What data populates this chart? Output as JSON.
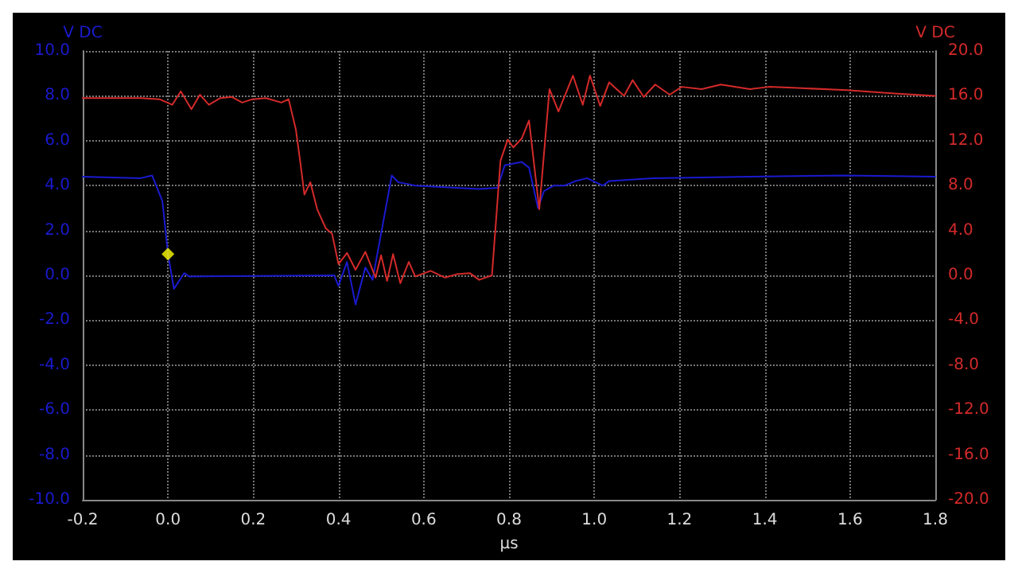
{
  "chart_data": {
    "type": "line",
    "xlabel": "μs",
    "ylabel": "V DC",
    "y2label": "V DC",
    "xlim": [
      -0.2,
      1.8
    ],
    "xticks": [
      -0.2,
      {
        "value": 0,
        "label": "0.0"
      },
      0.2,
      0.4,
      0.6,
      0.8,
      {
        "value": 1,
        "label": "1.0"
      },
      1.2,
      1.4,
      1.6,
      1.8
    ],
    "ylim": [
      -10,
      10
    ],
    "yticks": [
      {
        "value": -10,
        "label": "-10.0"
      },
      {
        "value": -8,
        "label": "-8.0"
      },
      {
        "value": -6,
        "label": "-6.0"
      },
      {
        "value": -4,
        "label": "-4.0"
      },
      {
        "value": -2,
        "label": "-2.0"
      },
      {
        "value": 0,
        "label": "0.0"
      },
      {
        "value": 2,
        "label": "2.0"
      },
      {
        "value": 4,
        "label": "4.0"
      },
      {
        "value": 6,
        "label": "6.0"
      },
      {
        "value": 8,
        "label": "8.0"
      },
      {
        "value": 10,
        "label": "10.0"
      }
    ],
    "y2lim": [
      -20,
      20
    ],
    "y2ticks": [
      {
        "value": -20,
        "label": "-20.0"
      },
      {
        "value": -16,
        "label": "-16.0"
      },
      {
        "value": -12,
        "label": "-12.0"
      },
      {
        "value": -8,
        "label": "-8.0"
      },
      {
        "value": -4,
        "label": "-4.0"
      },
      {
        "value": 0,
        "label": "0.0"
      },
      {
        "value": 4,
        "label": "4.0"
      },
      {
        "value": 8,
        "label": "8.0"
      },
      {
        "value": 12,
        "label": "12.0"
      },
      {
        "value": 16,
        "label": "16.0"
      },
      {
        "value": 20,
        "label": "20.0"
      }
    ],
    "grid": true,
    "marker": "none",
    "line_style": "solid",
    "series": [
      {
        "color": "#1a1ad0",
        "x": [
          -0.2,
          -0.064,
          -0.037,
          -0.013,
          0,
          0.014,
          0.038,
          0.05,
          0.39,
          0.4,
          0.42,
          0.44,
          0.463,
          0.48,
          0.525,
          0.54,
          0.555,
          0.58,
          0.73,
          0.773,
          0.79,
          0.83,
          0.847,
          0.868,
          0.882,
          0.905,
          0.93,
          0.956,
          0.983,
          1.02,
          1.035,
          1.137,
          1.365,
          1.59,
          1.8
        ],
        "values": [
          4.4,
          4.33,
          4.45,
          3.3,
          0.95,
          -0.6,
          0.1,
          -0.05,
          0,
          -0.47,
          0.6,
          -1.3,
          0.35,
          -0.2,
          4.45,
          4.15,
          4.1,
          4.0,
          3.85,
          3.9,
          4.9,
          5.05,
          4.8,
          3.0,
          3.75,
          4.0,
          4.0,
          4.2,
          4.33,
          4.0,
          4.2,
          4.33,
          4.4,
          4.45,
          4.4
        ]
      },
      {
        "color": "#d42a2a",
        "axis": "y2",
        "x": [
          -0.2,
          -0.064,
          -0.02,
          0.01,
          0.03,
          0.055,
          0.075,
          0.096,
          0.123,
          0.15,
          0.174,
          0.198,
          0.23,
          0.266,
          0.283,
          0.3,
          0.31,
          0.32,
          0.334,
          0.35,
          0.37,
          0.385,
          0.4,
          0.42,
          0.44,
          0.463,
          0.487,
          0.5,
          0.514,
          0.528,
          0.545,
          0.565,
          0.58,
          0.616,
          0.65,
          0.677,
          0.708,
          0.73,
          0.76,
          0.78,
          0.797,
          0.81,
          0.83,
          0.847,
          0.871,
          0.895,
          0.916,
          0.95,
          0.973,
          0.99,
          1.014,
          1.035,
          1.07,
          1.09,
          1.116,
          1.143,
          1.177,
          1.205,
          1.252,
          1.297,
          1.365,
          1.41,
          1.477,
          1.593,
          1.705,
          1.8
        ],
        "values": [
          15.8,
          15.8,
          15.7,
          15.2,
          16.4,
          14.8,
          16.1,
          15.2,
          15.8,
          15.9,
          15.4,
          15.7,
          15.8,
          15.4,
          15.7,
          13.0,
          10.2,
          7.2,
          8.3,
          5.9,
          4.2,
          3.7,
          1.0,
          2.0,
          0.5,
          2.1,
          -0.2,
          1.8,
          -0.5,
          1.9,
          -0.7,
          1.2,
          -0.1,
          0.4,
          -0.2,
          0.1,
          0.2,
          -0.4,
          0,
          10.2,
          12.1,
          11.4,
          12.2,
          13.8,
          5.9,
          16.6,
          14.6,
          17.8,
          15.2,
          17.8,
          15.1,
          17.2,
          16.0,
          17.4,
          15.9,
          17.0,
          16.1,
          16.8,
          16.6,
          17.0,
          16.6,
          16.8,
          16.7,
          16.5,
          16.2,
          16.0
        ]
      },
      {
        "type": "scatter",
        "color": "#ffff00",
        "marker": "diamond",
        "x": [
          0
        ],
        "values": [
          0.95
        ]
      }
    ]
  }
}
